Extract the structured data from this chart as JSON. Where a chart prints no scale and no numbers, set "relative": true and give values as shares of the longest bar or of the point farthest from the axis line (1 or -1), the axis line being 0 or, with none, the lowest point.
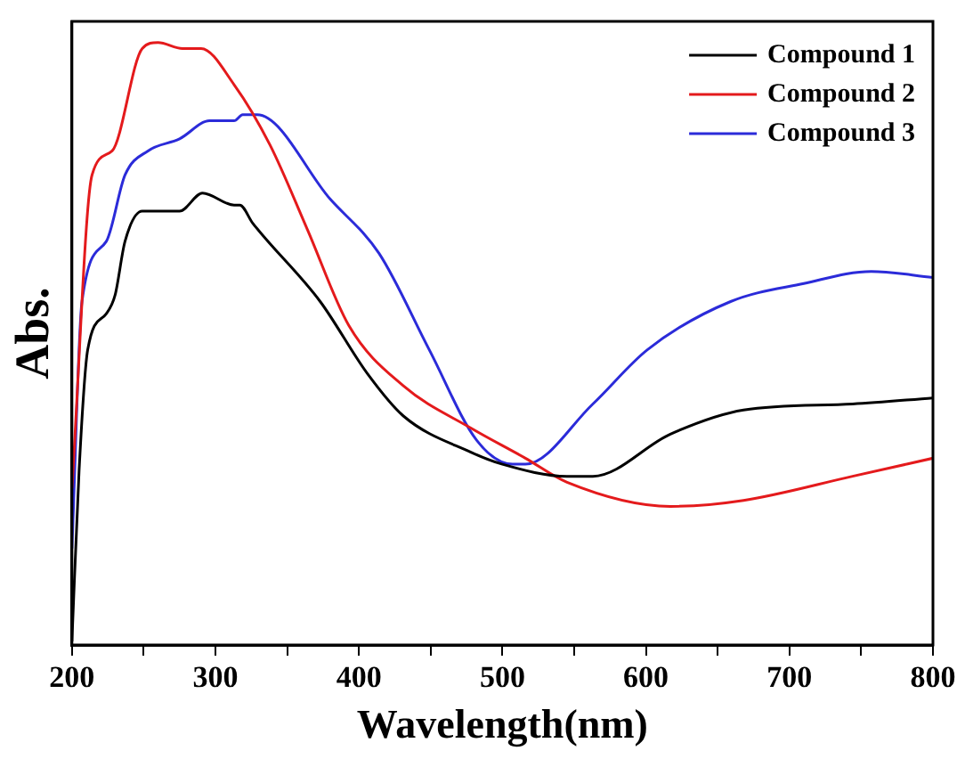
{
  "chart_data": {
    "type": "line",
    "xlabel": "Wavelength(nm)",
    "ylabel": "Abs.",
    "relative": true,
    "xlim": [
      200,
      800
    ],
    "xticks": [
      200,
      {
        "value": 250,
        "label": null
      },
      300,
      {
        "value": 350,
        "label": null
      },
      400,
      {
        "value": 450,
        "label": null
      },
      500,
      {
        "value": 550,
        "label": null
      },
      600,
      {
        "value": 650,
        "label": null
      },
      700,
      {
        "value": 750,
        "label": null
      },
      800
    ],
    "legend": "top right",
    "grid": false,
    "marker": "none",
    "line_style": "solid",
    "series": [
      {
        "name": "Compound 1",
        "color": "#000000",
        "x": [
          200,
          205,
          211,
          224,
          230,
          237,
          249,
          275,
          291,
          313,
          317,
          326,
          373,
          406,
          431,
          478,
          500,
          545,
          563,
          617,
          668,
          744,
          800
        ],
        "values": [
          0.006,
          0.29,
          0.49,
          0.55,
          0.58,
          0.67,
          0.72,
          0.72,
          0.75,
          0.73,
          0.73,
          0.7,
          0.57,
          0.45,
          0.38,
          0.32,
          0.3,
          0.28,
          0.28,
          0.35,
          0.39,
          0.4,
          0.41
        ]
      },
      {
        "name": "Compound 2",
        "color": "#e41a1c",
        "x": [
          200,
          214,
          228,
          249,
          260,
          277,
          290,
          313,
          338,
          364,
          393,
          431,
          478,
          516,
          545,
          617,
          668,
          744,
          800
        ],
        "values": [
          0.26,
          0.78,
          0.82,
          0.99,
          1,
          0.99,
          0.99,
          0.93,
          0.83,
          0.69,
          0.53,
          0.43,
          0.36,
          0.31,
          0.27,
          0.23,
          0.24,
          0.28,
          0.31
        ]
      },
      {
        "name": "Compound 3",
        "color": "#2b2bd9",
        "x": [
          200,
          207,
          224,
          237,
          253,
          275,
          296,
          313,
          319,
          329,
          380,
          414,
          449,
          482,
          507,
          516,
          563,
          601,
          659,
          710,
          757,
          800
        ],
        "values": [
          0.16,
          0.57,
          0.67,
          0.78,
          0.82,
          0.84,
          0.87,
          0.87,
          0.88,
          0.88,
          0.74,
          0.65,
          0.49,
          0.34,
          0.3,
          0.3,
          0.4,
          0.49,
          0.57,
          0.6,
          0.62,
          0.61
        ]
      }
    ]
  }
}
